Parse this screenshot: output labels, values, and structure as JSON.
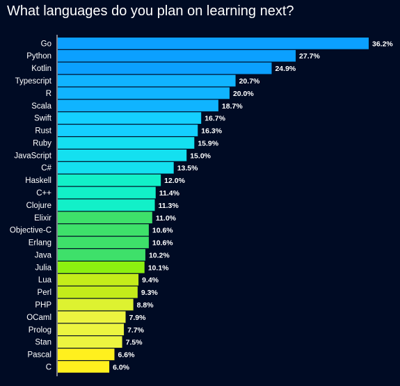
{
  "chart_data": {
    "type": "bar",
    "orientation": "horizontal",
    "title": "What languages do you plan on learning next?",
    "value_suffix": "%",
    "xlim": [
      0,
      36.2
    ],
    "grid": false,
    "categories": [
      "Go",
      "Python",
      "Kotlin",
      "Typescript",
      "R",
      "Scala",
      "Swift",
      "Rust",
      "Ruby",
      "JavaScript",
      "C#",
      "Haskell",
      "C++",
      "Clojure",
      "Elixir",
      "Objective-C",
      "Erlang",
      "Java",
      "Julia",
      "Lua",
      "Perl",
      "PHP",
      "OCaml",
      "Prolog",
      "Stan",
      "Pascal",
      "C"
    ],
    "values": [
      36.2,
      27.7,
      24.9,
      20.7,
      20.0,
      18.7,
      16.7,
      16.3,
      15.9,
      15.0,
      13.5,
      12.0,
      11.4,
      11.3,
      11.0,
      10.6,
      10.6,
      10.2,
      10.1,
      9.4,
      9.3,
      8.8,
      7.9,
      7.7,
      7.5,
      6.6,
      6.0
    ],
    "colors": [
      "#0ba0ff",
      "#0ba0ff",
      "#0ba0ff",
      "#10b4ff",
      "#10b4ff",
      "#10b4ff",
      "#14d0ff",
      "#14d0ff",
      "#14e0f0",
      "#14e0f0",
      "#14e0f0",
      "#12f0c8",
      "#12f0c8",
      "#12f0c8",
      "#3ee06a",
      "#3ee06a",
      "#3ee06a",
      "#3ee06a",
      "#8cf010",
      "#c4ec1a",
      "#c4ec1a",
      "#ddf230",
      "#ecf440",
      "#ecf440",
      "#ecf440",
      "#fff01e",
      "#fff01e"
    ]
  }
}
